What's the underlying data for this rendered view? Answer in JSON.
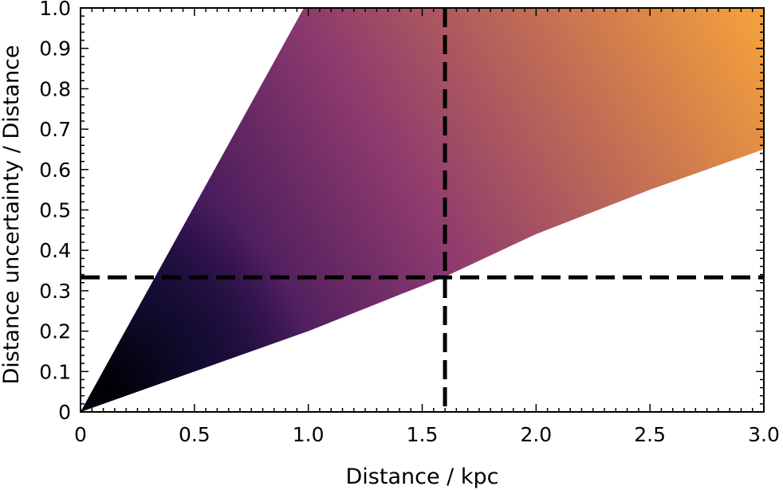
{
  "chart_data": {
    "type": "heatmap",
    "xlabel": "Distance / kpc",
    "ylabel": "Distance uncertainty / Distance",
    "xlim": [
      0,
      3.0
    ],
    "ylim": [
      0,
      1.0
    ],
    "x_ticks": [
      {
        "value": 0,
        "label": "0"
      },
      {
        "value": 0.5,
        "label": "0.5"
      },
      {
        "value": 1.0,
        "label": "1.0"
      },
      {
        "value": 1.5,
        "label": "1.5"
      },
      {
        "value": 2.0,
        "label": "2.0"
      },
      {
        "value": 2.5,
        "label": "2.5"
      },
      {
        "value": 3.0,
        "label": "3.0"
      }
    ],
    "y_ticks": [
      {
        "value": 0,
        "label": "0"
      },
      {
        "value": 0.1,
        "label": "0.1"
      },
      {
        "value": 0.2,
        "label": "0.2"
      },
      {
        "value": 0.3,
        "label": "0.3"
      },
      {
        "value": 0.4,
        "label": "0.4"
      },
      {
        "value": 0.5,
        "label": "0.5"
      },
      {
        "value": 0.6,
        "label": "0.6"
      },
      {
        "value": 0.7,
        "label": "0.7"
      },
      {
        "value": 0.8,
        "label": "0.8"
      },
      {
        "value": 0.9,
        "label": "0.9"
      },
      {
        "value": 1.0,
        "label": "1.0"
      }
    ],
    "density_region": {
      "boundary": [
        {
          "x": 0.0,
          "y": 0.0
        },
        {
          "x": 0.98,
          "y": 1.0
        },
        {
          "x": 3.0,
          "y": 1.0
        },
        {
          "x": 3.0,
          "y": 0.65
        },
        {
          "x": 2.5,
          "y": 0.55
        },
        {
          "x": 2.0,
          "y": 0.44
        },
        {
          "x": 1.6,
          "y": 0.335
        },
        {
          "x": 1.0,
          "y": 0.2
        },
        {
          "x": 0.5,
          "y": 0.1
        },
        {
          "x": 0.0,
          "y": 0.0
        }
      ],
      "colormap": "inferno",
      "color_low_density": "#f7a33a",
      "color_mid_density": "#8e3a6e",
      "color_high_density": "#120b30",
      "color_peak": "#000004"
    },
    "reference_lines": [
      {
        "orientation": "vertical",
        "x": 1.6,
        "style": "dashed",
        "color": "#000000"
      },
      {
        "orientation": "horizontal",
        "y": 0.333,
        "style": "dashed",
        "color": "#000000"
      }
    ],
    "grid": false,
    "legend": "none"
  }
}
